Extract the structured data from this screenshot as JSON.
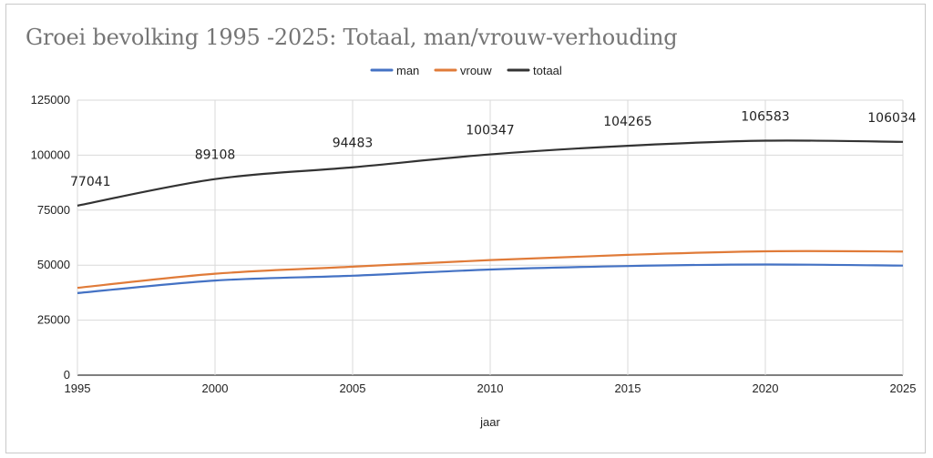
{
  "chart_data": {
    "type": "line",
    "title": "Groei bevolking 1995 -2025: Totaal, man/vrouw-verhouding",
    "xlabel": "jaar",
    "ylabel": "",
    "x": [
      1995,
      2000,
      2005,
      2010,
      2015,
      2020,
      2025
    ],
    "xlim": [
      1995,
      2025
    ],
    "ylim": [
      0,
      125000
    ],
    "yticks": [
      0,
      25000,
      50000,
      75000,
      100000,
      125000
    ],
    "grid": true,
    "legend_position": "top",
    "series": [
      {
        "name": "man",
        "color": "#4472c4",
        "values": [
          37300,
          43000,
          45200,
          48000,
          49600,
          50300,
          49800
        ]
      },
      {
        "name": "vrouw",
        "color": "#e07b39",
        "values": [
          39700,
          46100,
          49300,
          52300,
          54700,
          56300,
          56200
        ]
      },
      {
        "name": "totaal",
        "color": "#333333",
        "values": [
          77041,
          89108,
          94483,
          100347,
          104265,
          106583,
          106034
        ],
        "data_labels": [
          "77041",
          "89108",
          "94483",
          "100347",
          "104265",
          "106583",
          "106034"
        ]
      }
    ]
  }
}
